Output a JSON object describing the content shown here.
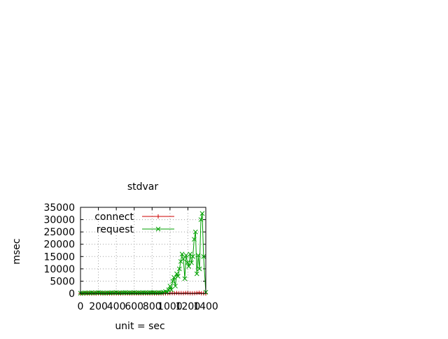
{
  "chart_data": {
    "type": "line",
    "title": "stdvar",
    "xlabel": "unit = sec",
    "ylabel": "msec",
    "xlim": [
      0,
      1400
    ],
    "ylim": [
      0,
      35000
    ],
    "xticks": [
      0,
      200,
      400,
      600,
      800,
      1000,
      1200,
      1400
    ],
    "yticks": [
      0,
      5000,
      10000,
      15000,
      20000,
      25000,
      30000,
      35000
    ],
    "grid": true,
    "legend_position": "top-left",
    "series": [
      {
        "name": "connect",
        "color": "#cc0000",
        "marker": "plus",
        "x": [
          0,
          25,
          50,
          75,
          100,
          125,
          150,
          175,
          200,
          225,
          250,
          275,
          300,
          325,
          350,
          375,
          400,
          425,
          450,
          475,
          500,
          525,
          550,
          575,
          600,
          625,
          650,
          675,
          700,
          725,
          750,
          775,
          800,
          825,
          850,
          875,
          900,
          925,
          950,
          975,
          1000,
          1025,
          1050,
          1075,
          1100,
          1125,
          1150,
          1175,
          1200,
          1225,
          1250,
          1275,
          1300,
          1325,
          1350,
          1375,
          1400
        ],
        "y": [
          0,
          0,
          10,
          0,
          0,
          20,
          0,
          0,
          30,
          0,
          0,
          0,
          10,
          0,
          0,
          0,
          20,
          0,
          0,
          10,
          0,
          0,
          0,
          0,
          10,
          0,
          0,
          0,
          0,
          10,
          0,
          0,
          0,
          0,
          0,
          10,
          0,
          0,
          50,
          80,
          120,
          150,
          100,
          200,
          120,
          150,
          100,
          200,
          150,
          100,
          80,
          120,
          200,
          300,
          100,
          50,
          0
        ]
      },
      {
        "name": "request",
        "color": "#00a000",
        "marker": "x",
        "x": [
          0,
          25,
          50,
          75,
          100,
          125,
          150,
          175,
          200,
          225,
          250,
          275,
          300,
          325,
          350,
          375,
          400,
          425,
          450,
          475,
          500,
          525,
          550,
          575,
          600,
          625,
          650,
          675,
          700,
          725,
          750,
          775,
          800,
          825,
          850,
          875,
          900,
          925,
          950,
          970,
          985,
          1000,
          1015,
          1030,
          1045,
          1060,
          1075,
          1090,
          1105,
          1120,
          1135,
          1150,
          1165,
          1180,
          1195,
          1210,
          1225,
          1240,
          1255,
          1270,
          1285,
          1300,
          1315,
          1330,
          1345,
          1360,
          1375,
          1400
        ],
        "y": [
          100,
          150,
          300,
          200,
          250,
          350,
          200,
          300,
          400,
          300,
          250,
          200,
          300,
          250,
          350,
          300,
          400,
          250,
          300,
          350,
          400,
          300,
          350,
          300,
          400,
          300,
          350,
          300,
          400,
          350,
          300,
          400,
          350,
          400,
          300,
          400,
          350,
          500,
          800,
          500,
          1500,
          3000,
          1500,
          5000,
          6500,
          3000,
          8000,
          7000,
          10000,
          13000,
          16000,
          14000,
          6000,
          15500,
          12500,
          11000,
          16000,
          12500,
          15000,
          22000,
          25000,
          8000,
          15500,
          10000,
          30000,
          32500,
          15000,
          500
        ]
      }
    ]
  }
}
